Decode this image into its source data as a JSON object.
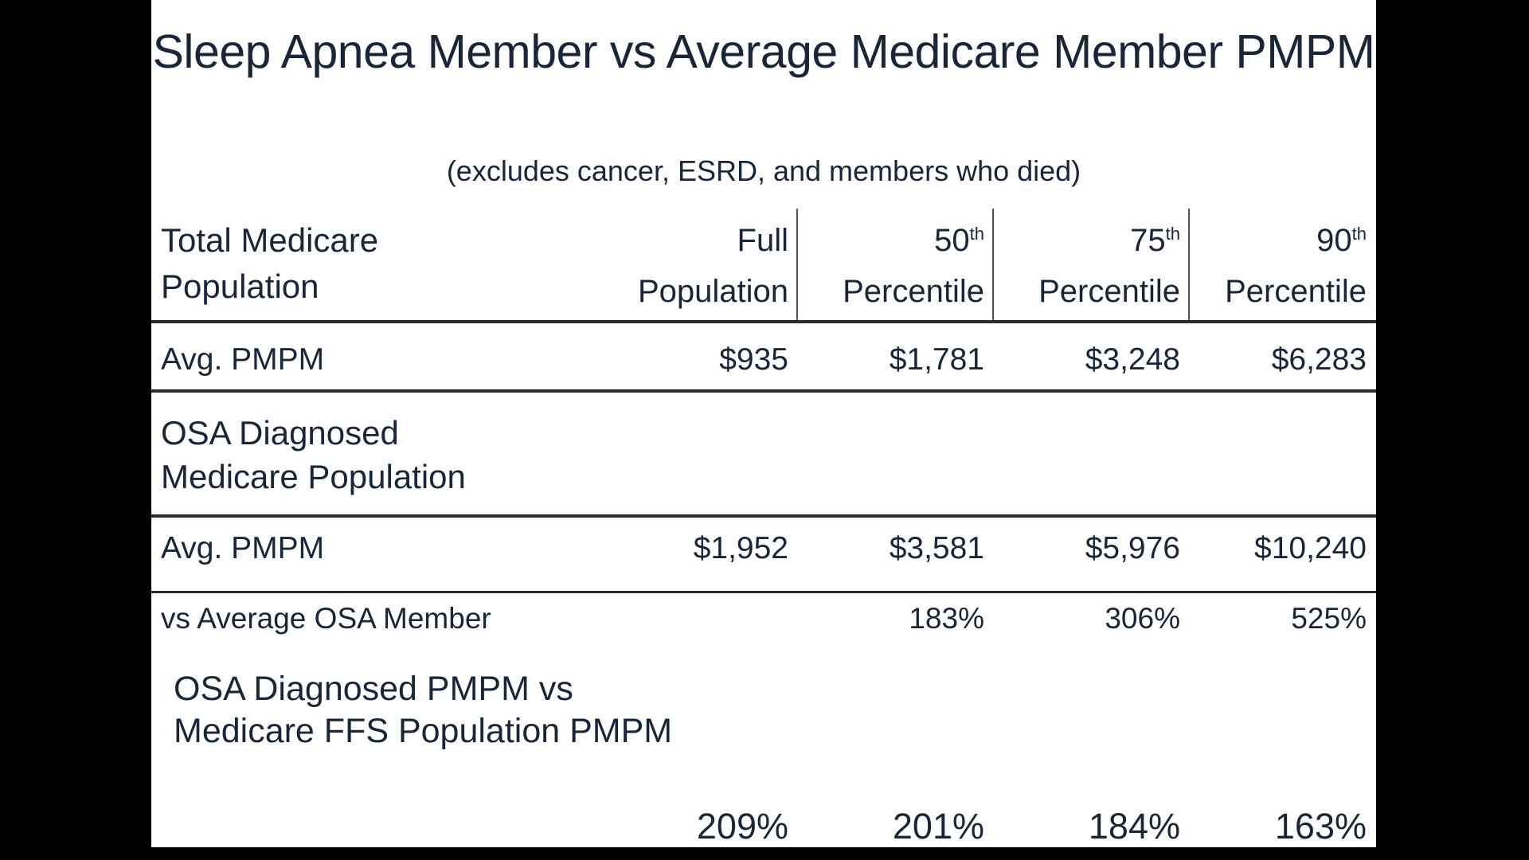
{
  "colors": {
    "background": "#000000",
    "surface": "#ffffff",
    "text": "#1a2538",
    "rule": "#2b2b2b",
    "divider": "#4d4d4d"
  },
  "title": {
    "line1": "Sleep Apnea Member vs",
    "line2": "Average Medicare Member PMPM",
    "subtitle": "(excludes cancer, ESRD, and members who died)"
  },
  "table": {
    "header": {
      "row_label_line1": "Total Medicare",
      "row_label_line2": "Population",
      "columns": [
        {
          "prefix": "Full",
          "sup": "",
          "line2": "Population"
        },
        {
          "prefix": "50",
          "sup": "th",
          "line2": "Percentile"
        },
        {
          "prefix": "75",
          "sup": "th",
          "line2": "Percentile"
        },
        {
          "prefix": "90",
          "sup": "th",
          "line2": "Percentile"
        }
      ]
    },
    "rows": [
      {
        "label": "Avg. PMPM",
        "values": [
          "$935",
          "$1,781",
          "$3,248",
          "$6,283"
        ]
      },
      {
        "label": "Avg. PMPM",
        "values": [
          "$1,952",
          "$3,581",
          "$5,976",
          "$10,240"
        ]
      },
      {
        "label": "vs Average OSA Member",
        "values": [
          "",
          "183%",
          "306%",
          "525%"
        ]
      },
      {
        "label": "",
        "values": [
          "209%",
          "201%",
          "184%",
          "163%"
        ]
      }
    ],
    "sections": {
      "osa": {
        "line1": "OSA Diagnosed",
        "line2": "Medicare Population"
      },
      "ratio": {
        "line1": "OSA Diagnosed PMPM vs",
        "line2": "Medicare FFS Population PMPM"
      }
    }
  },
  "chart_data": {
    "type": "table",
    "title": "Sleep Apnea Member vs Average Medicare Member PMPM",
    "subtitle": "(excludes cancer, ESRD, and members who died)",
    "columns": [
      "Full Population",
      "50th Percentile",
      "75th Percentile",
      "90th Percentile"
    ],
    "sections": [
      {
        "section": "Total Medicare Population",
        "rows": [
          {
            "label": "Avg. PMPM",
            "values": [
              "$935",
              "$1,781",
              "$3,248",
              "$6,283"
            ]
          }
        ]
      },
      {
        "section": "OSA Diagnosed Medicare Population",
        "rows": [
          {
            "label": "Avg. PMPM",
            "values": [
              "$1,952",
              "$3,581",
              "$5,976",
              "$10,240"
            ]
          },
          {
            "label": "vs Average OSA Member",
            "values": [
              null,
              "183%",
              "306%",
              "525%"
            ]
          }
        ]
      },
      {
        "section": "OSA Diagnosed PMPM vs Medicare FFS Population PMPM",
        "rows": [
          {
            "label": "",
            "values": [
              "209%",
              "201%",
              "184%",
              "163%"
            ]
          }
        ]
      }
    ]
  }
}
